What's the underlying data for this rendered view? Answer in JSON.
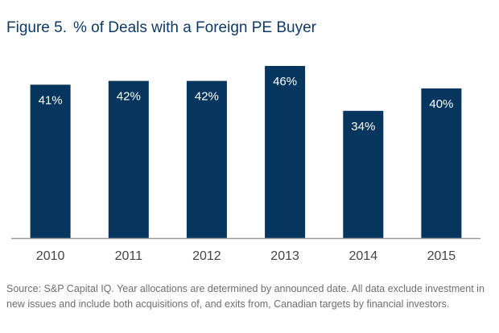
{
  "figure": {
    "number": "Figure 5.",
    "title": "% of Deals with a Foreign PE Buyer"
  },
  "chart_data": {
    "type": "bar",
    "categories": [
      "2010",
      "2011",
      "2012",
      "2013",
      "2014",
      "2015"
    ],
    "values": [
      41,
      42,
      42,
      46,
      34,
      40
    ],
    "data_labels": [
      "41%",
      "42%",
      "42%",
      "46%",
      "34%",
      "40%"
    ],
    "unit": "%",
    "ylim": [
      0,
      46
    ],
    "grid": false,
    "bar_color": "#06355e",
    "label_color": "#ffffff",
    "axis_color": "#9a9a9a",
    "tick_color": "#444444"
  },
  "source_note": "Source: S&P Capital IQ. Year allocations are determined by announced date. All data exclude investment in new issues and include both acquisitions of, and exits from, Canadian targets by financial investors.",
  "colors": {
    "title": "#0d3a66",
    "source": "#6e6e6e"
  }
}
